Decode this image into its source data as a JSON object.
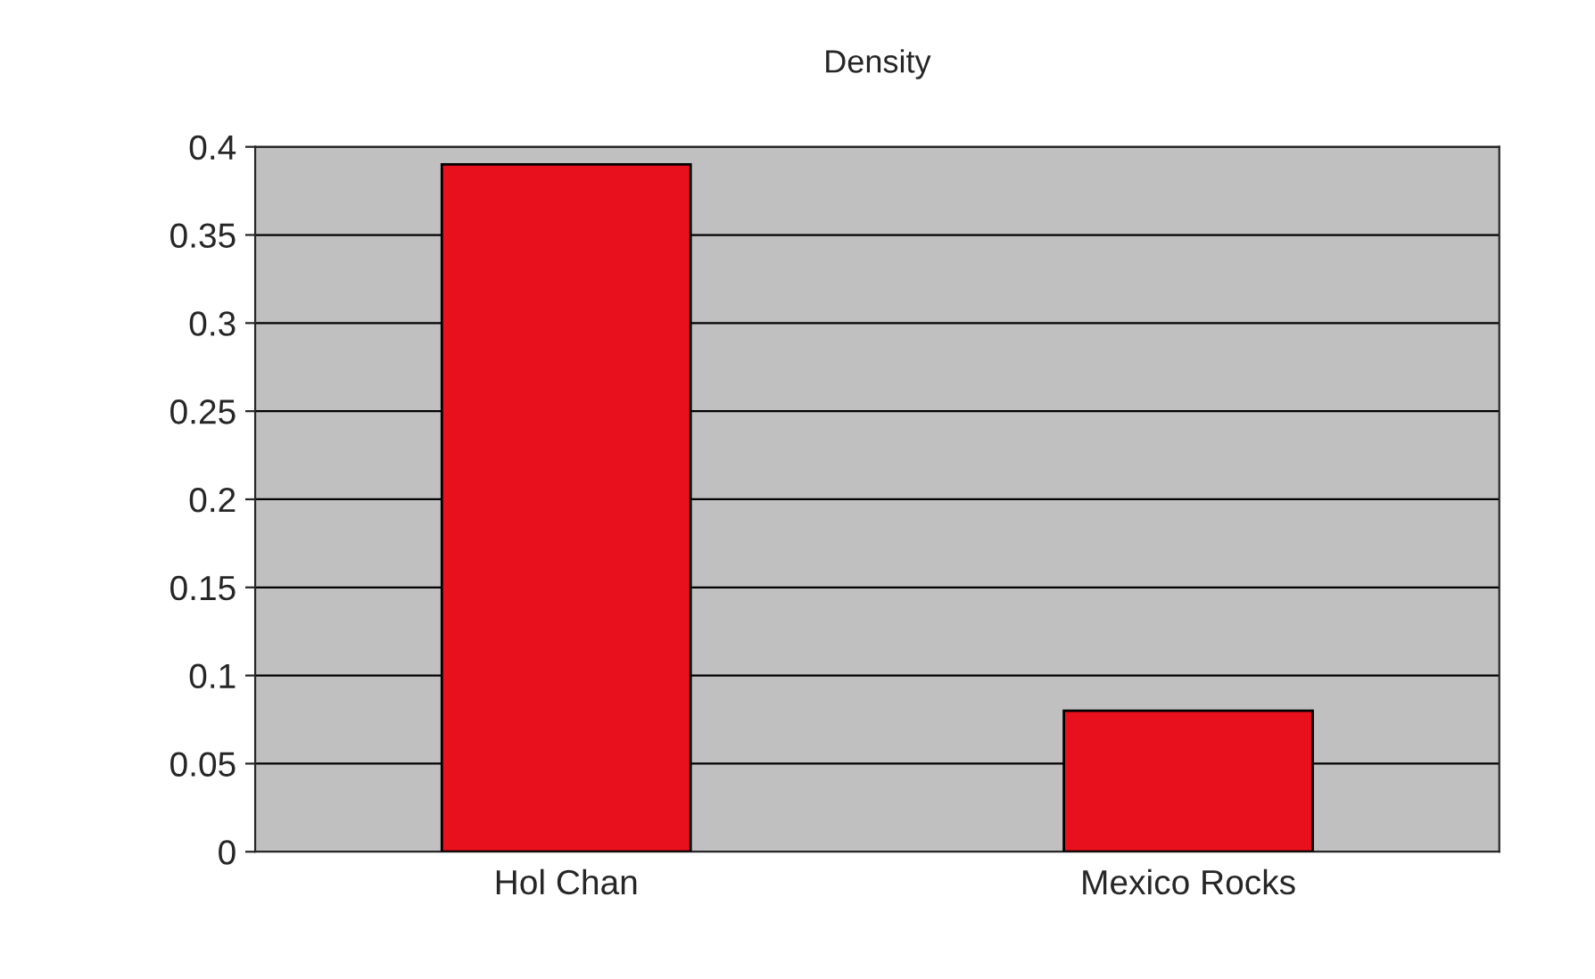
{
  "chart_data": {
    "type": "bar",
    "title": "Density",
    "categories": [
      "Hol Chan",
      "Mexico Rocks"
    ],
    "values": [
      0.39,
      0.08
    ],
    "color": "#e8101c",
    "ylim": [
      0,
      0.4
    ],
    "yticks": [
      0,
      0.05,
      0.1,
      0.15,
      0.2,
      0.25,
      0.3,
      0.35,
      0.4
    ],
    "grid": "y",
    "legend": false
  }
}
